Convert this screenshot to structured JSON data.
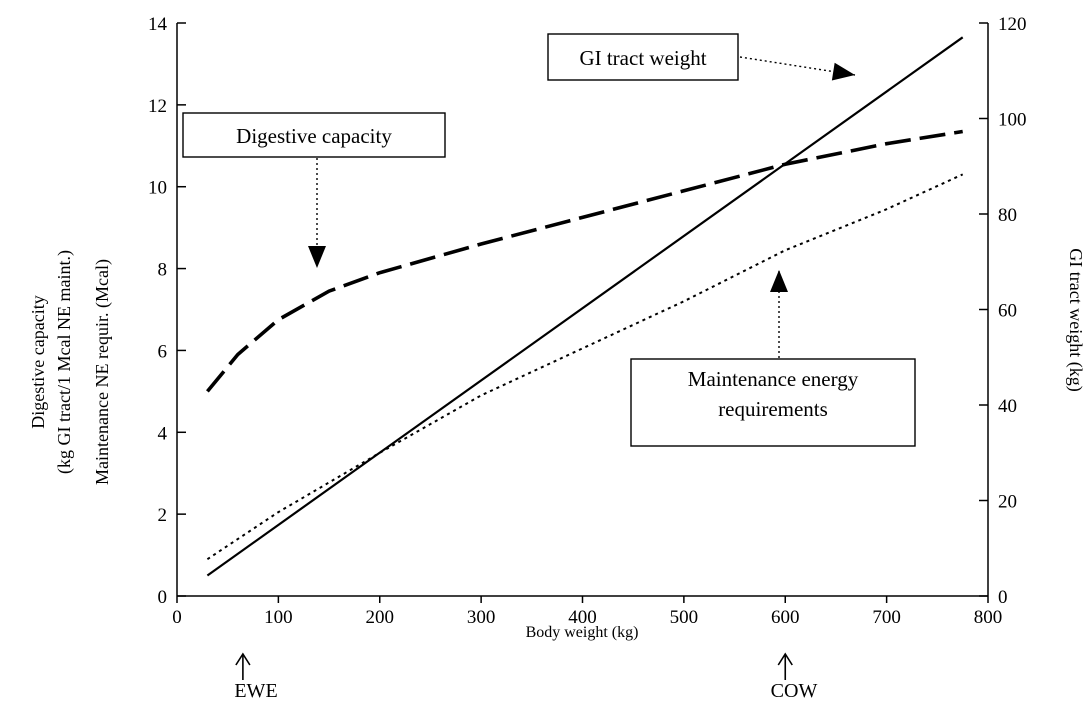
{
  "chart_data": {
    "type": "line",
    "xlabel": "Body weight (kg)",
    "ylabel_left": [
      "Digestive capacity",
      "(kg GI tract/1 Mcal  NE maint.)",
      "Maintenance NE  requir.  (Mcal)"
    ],
    "ylabel_right": "GI tract weight (kg)",
    "xlim": [
      0,
      800
    ],
    "ylim_left": [
      0,
      14
    ],
    "ylim_right": [
      0,
      120
    ],
    "xticks": [
      0,
      100,
      200,
      300,
      400,
      500,
      600,
      700,
      800
    ],
    "yticks_left": [
      0,
      2,
      4,
      6,
      8,
      10,
      12,
      14
    ],
    "yticks_right": [
      0,
      20,
      40,
      60,
      80,
      100,
      120
    ],
    "grid": false,
    "series": [
      {
        "name": "GI tract weight",
        "axis": "right",
        "style": "solid",
        "x": [
          30,
          775
        ],
        "y": [
          4.3,
          117
        ]
      },
      {
        "name": "Digestive capacity",
        "axis": "left",
        "style": "dashed",
        "x": [
          30,
          60,
          100,
          150,
          200,
          300,
          400,
          500,
          600,
          700,
          775
        ],
        "y": [
          5.0,
          5.9,
          6.75,
          7.45,
          7.9,
          8.6,
          9.25,
          9.9,
          10.55,
          11.05,
          11.35
        ]
      },
      {
        "name": "Maintenance energy requirements",
        "axis": "left",
        "style": "dotted",
        "x": [
          30,
          100,
          200,
          300,
          400,
          500,
          600,
          700,
          775
        ],
        "y": [
          0.9,
          2.05,
          3.5,
          4.9,
          6.05,
          7.2,
          8.45,
          9.45,
          10.3
        ]
      }
    ],
    "annotations": [
      {
        "lines": [
          "GI tract weight"
        ],
        "target": "GI tract weight"
      },
      {
        "lines": [
          "Digestive capacity"
        ],
        "target": "Digestive capacity"
      },
      {
        "lines": [
          "Maintenance  energy",
          "requirements"
        ],
        "target": "Maintenance energy requirements"
      }
    ],
    "markers": [
      {
        "label": "EWE",
        "x": 65
      },
      {
        "label": "COW",
        "x": 600
      }
    ]
  }
}
